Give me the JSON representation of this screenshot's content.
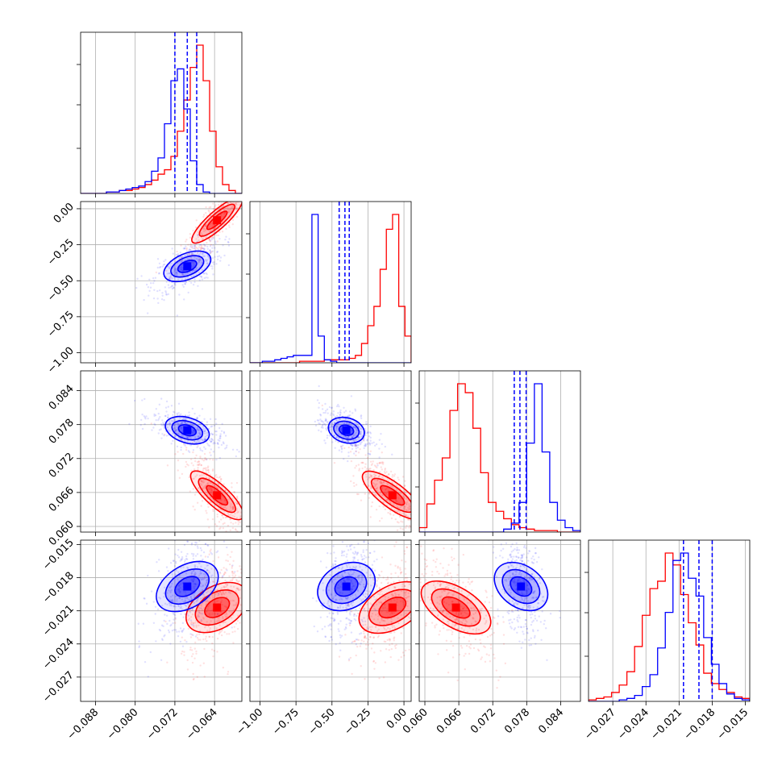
{
  "chart_data": {
    "type": "scatter",
    "title": "",
    "series_colors": {
      "red": "#ff0000",
      "blue": "#0000ff"
    },
    "grid": true,
    "parameters": [
      {
        "range": [
          -0.091,
          -0.0585
        ],
        "ticks": [
          -0.088,
          -0.08,
          -0.072,
          -0.064
        ],
        "tick_labels": [
          "−0.088",
          "−0.080",
          "−0.072",
          "−0.064"
        ]
      },
      {
        "range": [
          -1.07,
          0.05
        ],
        "ticks": [
          -1.0,
          -0.75,
          -0.5,
          -0.25,
          0.0
        ],
        "tick_labels": [
          "−1.00",
          "−0.75",
          "−0.50",
          "−0.25",
          "0.00"
        ]
      },
      {
        "range": [
          0.059,
          0.0875
        ],
        "ticks": [
          0.06,
          0.066,
          0.072,
          0.078,
          0.084
        ],
        "tick_labels": [
          "0.060",
          "0.066",
          "0.072",
          "0.078",
          "0.084"
        ]
      },
      {
        "range": [
          -0.0292,
          -0.0146
        ],
        "ticks": [
          -0.027,
          -0.024,
          -0.021,
          -0.018,
          -0.015
        ],
        "tick_labels": [
          "−0.027",
          "−0.024",
          "−0.021",
          "−0.018",
          "−0.015"
        ]
      }
    ],
    "series": [
      {
        "color": "#ff0000",
        "mean": [
          -0.0635,
          -0.08,
          0.0655,
          -0.0207
        ],
        "sd": [
          0.0022,
          0.09,
          0.0025,
          0.0015
        ],
        "histograms": [
          [
            0,
            0,
            0,
            0,
            1,
            1,
            2,
            2,
            3,
            4,
            6,
            9,
            13,
            16,
            25,
            42,
            63,
            85,
            100,
            76,
            42,
            18,
            6,
            2,
            0
          ],
          [
            0,
            0,
            0,
            0,
            0,
            0,
            0,
            0,
            1,
            1,
            1,
            1,
            2,
            2,
            2,
            2,
            3,
            5,
            13,
            25,
            38,
            63,
            90,
            100,
            38,
            18
          ],
          [
            3,
            19,
            35,
            50,
            82,
            100,
            94,
            70,
            40,
            20,
            14,
            9,
            5,
            3,
            2,
            1,
            1,
            1,
            0,
            0,
            0
          ],
          [
            1,
            2,
            3,
            6,
            11,
            20,
            37,
            58,
            76,
            81,
            100,
            92,
            72,
            53,
            38,
            19,
            12,
            8,
            6,
            3,
            2
          ]
        ],
        "hist_quantiles": []
      },
      {
        "color": "#0000ff",
        "mean": [
          -0.0695,
          -0.4,
          0.077,
          -0.0188
        ],
        "sd": [
          0.0022,
          0.06,
          0.0012,
          0.0015
        ],
        "histograms": [
          [
            0,
            0,
            0,
            0,
            1,
            1,
            2,
            3,
            4,
            5,
            8,
            15,
            24,
            47,
            76,
            84,
            57,
            22,
            6,
            1,
            0,
            0,
            0,
            0,
            0
          ],
          [
            0,
            0,
            1,
            1,
            2,
            3,
            4,
            5,
            5,
            5,
            100,
            18,
            2,
            1,
            0,
            0,
            0,
            0,
            0,
            0,
            0,
            0,
            0,
            0,
            0,
            0
          ],
          [
            0,
            0,
            0,
            0,
            0,
            0,
            0,
            0,
            0,
            0,
            0,
            2,
            6,
            20,
            60,
            100,
            54,
            20,
            8,
            3,
            1
          ],
          [
            0,
            0,
            0,
            0,
            1,
            2,
            4,
            10,
            18,
            36,
            60,
            95,
            100,
            83,
            71,
            43,
            25,
            12,
            5,
            2,
            1
          ]
        ],
        "hist_quantiles": [
          [
            -0.072,
            -0.0695,
            -0.0676
          ],
          [
            -0.45,
            -0.41,
            -0.38
          ],
          [
            0.0758,
            0.0768,
            0.0779
          ],
          [
            -0.0206,
            -0.0192,
            -0.018
          ]
        ]
      }
    ]
  }
}
